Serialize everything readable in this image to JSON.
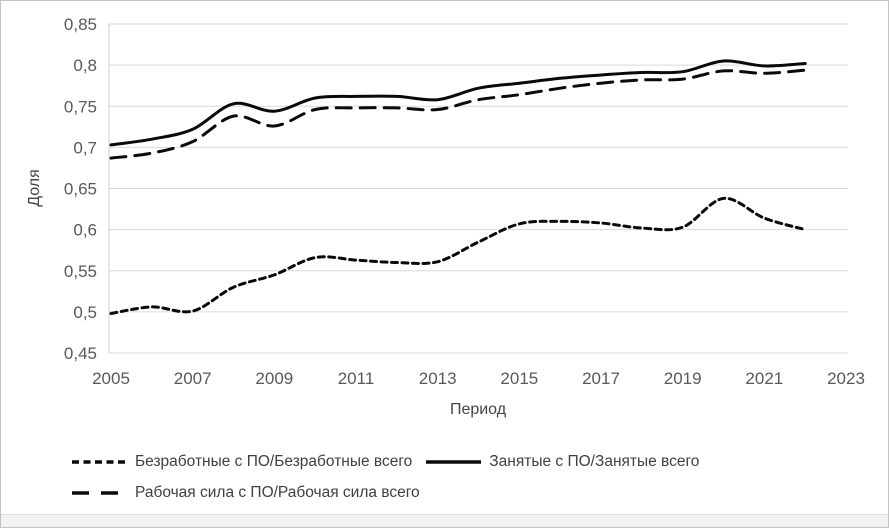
{
  "colors": {
    "series_line": "#0a0a0a",
    "gridline": "#d9d9d9",
    "tick_text": "#595959",
    "axis_title_text": "#444444",
    "legend_text": "#404040",
    "frame_border": "#c3c3c3",
    "bottom_strip": "#f2f2f2"
  },
  "axes": {
    "y_title": "Доля",
    "x_title": "Период",
    "y_tick_labels": [
      "0,85",
      "0,8",
      "0,75",
      "0,7",
      "0,65",
      "0,6",
      "0,55",
      "0,5",
      "0,45"
    ],
    "x_tick_labels": [
      "2005",
      "2007",
      "2009",
      "2011",
      "2013",
      "2015",
      "2017",
      "2019",
      "2021",
      "2023"
    ]
  },
  "chart_data": {
    "type": "line",
    "title": "",
    "xlabel": "Период",
    "ylabel": "Доля",
    "xlim": [
      2005,
      2023
    ],
    "ylim": [
      0.45,
      0.85
    ],
    "y_tick_step": 0.05,
    "x_tick_step": 2,
    "grid": "horizontal",
    "legend_position": "bottom-left",
    "decimal_separator": ",",
    "x": [
      2005,
      2006,
      2007,
      2008,
      2009,
      2010,
      2011,
      2012,
      2013,
      2014,
      2015,
      2016,
      2017,
      2018,
      2019,
      2020,
      2021,
      2022
    ],
    "series": [
      {
        "name": "Безработные с ПО/Безработные всего",
        "style": "short-dash",
        "values": [
          0.498,
          0.506,
          0.501,
          0.53,
          0.545,
          0.566,
          0.563,
          0.56,
          0.561,
          0.585,
          0.607,
          0.61,
          0.608,
          0.602,
          0.603,
          0.638,
          0.614,
          0.6
        ]
      },
      {
        "name": "Занятые с ПО/Занятые всего",
        "style": "solid",
        "values": [
          0.703,
          0.71,
          0.722,
          0.753,
          0.744,
          0.76,
          0.762,
          0.762,
          0.758,
          0.772,
          0.778,
          0.784,
          0.788,
          0.791,
          0.792,
          0.805,
          0.799,
          0.802
        ]
      },
      {
        "name": "Рабочая сила с ПО/Рабочая сила всего",
        "style": "long-dash",
        "values": [
          0.687,
          0.693,
          0.707,
          0.738,
          0.726,
          0.746,
          0.748,
          0.748,
          0.746,
          0.758,
          0.764,
          0.772,
          0.778,
          0.782,
          0.783,
          0.793,
          0.79,
          0.794
        ]
      }
    ]
  }
}
